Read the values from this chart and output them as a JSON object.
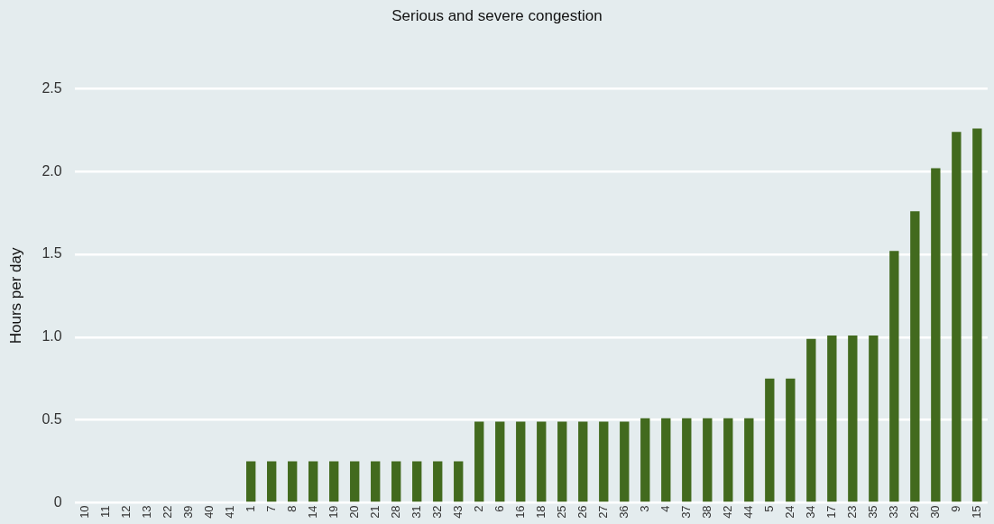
{
  "chart_data": {
    "type": "bar",
    "title": "Serious and severe congestion",
    "ylabel": "Hours per day",
    "categories": [
      "10",
      "11",
      "12",
      "13",
      "22",
      "39",
      "40",
      "41",
      "1",
      "7",
      "8",
      "14",
      "19",
      "20",
      "21",
      "28",
      "31",
      "32",
      "43",
      "2",
      "6",
      "16",
      "18",
      "25",
      "26",
      "27",
      "36",
      "3",
      "4",
      "37",
      "38",
      "42",
      "44",
      "5",
      "24",
      "34",
      "17",
      "23",
      "35",
      "33",
      "29",
      "30",
      "9",
      "15"
    ],
    "values": [
      0,
      0,
      0,
      0,
      0,
      0,
      0,
      0,
      0.25,
      0.25,
      0.25,
      0.25,
      0.25,
      0.25,
      0.25,
      0.25,
      0.25,
      0.25,
      0.25,
      0.49,
      0.49,
      0.49,
      0.49,
      0.49,
      0.49,
      0.49,
      0.49,
      0.51,
      0.51,
      0.51,
      0.51,
      0.51,
      0.51,
      0.75,
      0.75,
      0.99,
      1.01,
      1.01,
      1.01,
      1.52,
      1.76,
      2.02,
      2.24,
      2.26
    ],
    "color": "#426a1e",
    "ylim": [
      0,
      2.5
    ],
    "yticks": [
      0,
      {
        "value": 0.5,
        "label": "0.5"
      },
      {
        "value": 1,
        "label": "1.0"
      },
      {
        "value": 1.5,
        "label": "1.5"
      },
      {
        "value": 2,
        "label": "2.0"
      },
      {
        "value": 2.5,
        "label": "2.5"
      }
    ],
    "grid": "y",
    "legend": false
  }
}
